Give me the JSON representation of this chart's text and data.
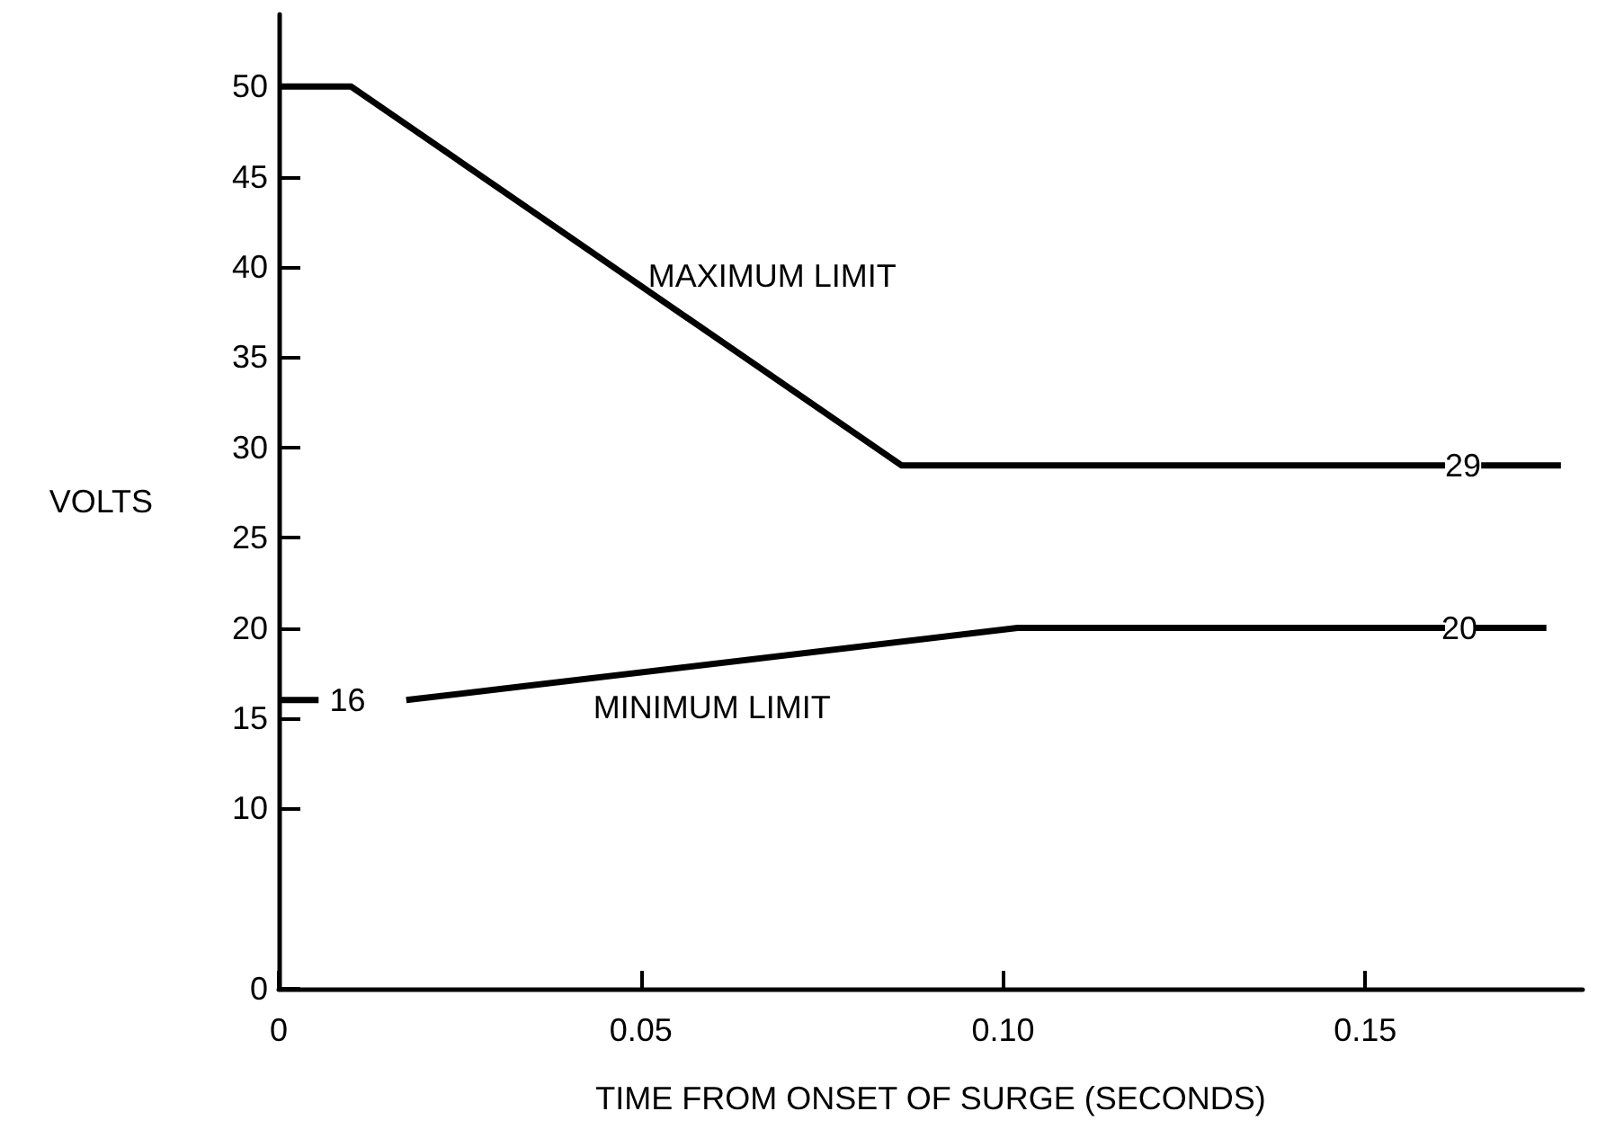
{
  "chart_data": {
    "type": "line",
    "xlabel": "TIME FROM ONSET OF SURGE (SECONDS)",
    "ylabel": "VOLTS",
    "xlim": [
      0,
      0.18
    ],
    "xticks": [
      0,
      0.05,
      {
        "value": 0.1,
        "label": "0.10"
      },
      0.15
    ],
    "ylim": [
      0,
      54
    ],
    "yticks": [
      0,
      10,
      15,
      20,
      25,
      30,
      35,
      40,
      45,
      50
    ],
    "grid": false,
    "legend": false,
    "marker": "none",
    "line_style": "solid",
    "series": [
      {
        "name": "MAXIMUM LIMIT",
        "color": "#000000",
        "x": [
          0,
          0.01,
          0.086,
          0.161,
          null,
          0.166,
          0.177
        ],
        "values": [
          50,
          50,
          29,
          29,
          null,
          29,
          29
        ]
      },
      {
        "name": "MINIMUM LIMIT",
        "color": "#000000",
        "x": [
          0,
          0.0055,
          null,
          0.0176,
          0.102,
          0.161,
          null,
          0.165,
          0.175
        ],
        "values": [
          16,
          16,
          null,
          16,
          20,
          20,
          null,
          20,
          20
        ]
      }
    ],
    "annotations": [
      {
        "text": "29",
        "x": 0.1635,
        "y": 29
      },
      {
        "text": "20",
        "x": 0.163,
        "y": 20
      },
      {
        "text": "16",
        "x": 0.0095,
        "y": 16
      }
    ]
  }
}
